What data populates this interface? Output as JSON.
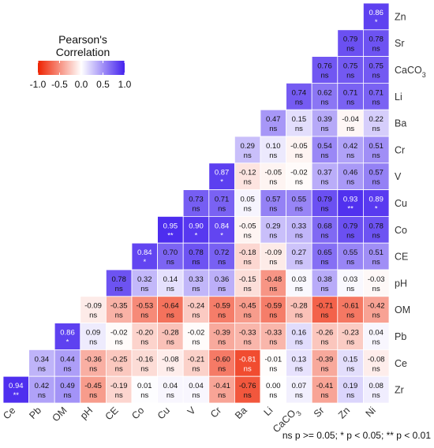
{
  "chart_data": {
    "type": "heatmap",
    "title": "",
    "xlabel": "",
    "ylabel": "",
    "x_labels": [
      "Ce",
      "Pb",
      "OM",
      "pH",
      "CE",
      "Co",
      "Cu",
      "V",
      "Cr",
      "Ba",
      "Li",
      "CaCO3",
      "Sr",
      "Zn",
      "Ni"
    ],
    "y_labels": [
      "Zn",
      "Sr",
      "CaCO3",
      "Li",
      "Ba",
      "Cr",
      "V",
      "Cu",
      "Co",
      "CE",
      "pH",
      "OM",
      "Pb",
      "Ce",
      "Zr"
    ],
    "values": [
      [
        null,
        null,
        null,
        null,
        null,
        null,
        null,
        null,
        null,
        null,
        null,
        null,
        null,
        null,
        0.86
      ],
      [
        null,
        null,
        null,
        null,
        null,
        null,
        null,
        null,
        null,
        null,
        null,
        null,
        null,
        0.79,
        0.78
      ],
      [
        null,
        null,
        null,
        null,
        null,
        null,
        null,
        null,
        null,
        null,
        null,
        null,
        0.76,
        0.75,
        0.75
      ],
      [
        null,
        null,
        null,
        null,
        null,
        null,
        null,
        null,
        null,
        null,
        null,
        0.74,
        0.62,
        0.71,
        0.71
      ],
      [
        null,
        null,
        null,
        null,
        null,
        null,
        null,
        null,
        null,
        null,
        0.47,
        0.15,
        0.39,
        -0.04,
        0.22
      ],
      [
        null,
        null,
        null,
        null,
        null,
        null,
        null,
        null,
        null,
        0.29,
        0.1,
        -0.05,
        0.54,
        0.42,
        0.51
      ],
      [
        null,
        null,
        null,
        null,
        null,
        null,
        null,
        null,
        0.87,
        -0.12,
        -0.05,
        -0.02,
        0.37,
        0.46,
        0.57
      ],
      [
        null,
        null,
        null,
        null,
        null,
        null,
        null,
        0.73,
        0.71,
        0.05,
        0.57,
        0.55,
        0.79,
        0.93,
        0.89
      ],
      [
        null,
        null,
        null,
        null,
        null,
        null,
        0.95,
        0.9,
        0.84,
        -0.05,
        0.29,
        0.33,
        0.68,
        0.79,
        0.78
      ],
      [
        null,
        null,
        null,
        null,
        null,
        0.84,
        0.7,
        0.78,
        0.72,
        -0.18,
        -0.09,
        0.27,
        0.65,
        0.55,
        0.51
      ],
      [
        null,
        null,
        null,
        null,
        0.78,
        0.32,
        0.14,
        0.33,
        0.36,
        -0.15,
        -0.48,
        0.03,
        0.38,
        0.03,
        -0.03
      ],
      [
        null,
        null,
        null,
        -0.09,
        -0.35,
        -0.53,
        -0.64,
        -0.24,
        -0.59,
        -0.45,
        -0.59,
        -0.28,
        -0.71,
        -0.61,
        -0.42
      ],
      [
        null,
        null,
        0.86,
        0.09,
        -0.02,
        -0.2,
        -0.28,
        -0.02,
        -0.39,
        -0.33,
        -0.33,
        0.16,
        -0.26,
        -0.23,
        0.04
      ],
      [
        null,
        0.34,
        0.44,
        -0.36,
        -0.25,
        -0.16,
        -0.08,
        -0.21,
        -0.6,
        -0.81,
        -0.01,
        0.13,
        -0.39,
        0.15,
        -0.08
      ],
      [
        0.94,
        0.42,
        0.49,
        -0.45,
        -0.19,
        0.01,
        0.04,
        0.04,
        -0.41,
        -0.76,
        0.0,
        0.07,
        -0.41,
        0.19,
        0.08
      ]
    ],
    "significance": [
      [
        null,
        null,
        null,
        null,
        null,
        null,
        null,
        null,
        null,
        null,
        null,
        null,
        null,
        null,
        "*"
      ],
      [
        null,
        null,
        null,
        null,
        null,
        null,
        null,
        null,
        null,
        null,
        null,
        null,
        null,
        "ns",
        "ns"
      ],
      [
        null,
        null,
        null,
        null,
        null,
        null,
        null,
        null,
        null,
        null,
        null,
        null,
        "ns",
        "ns",
        "ns"
      ],
      [
        null,
        null,
        null,
        null,
        null,
        null,
        null,
        null,
        null,
        null,
        null,
        "ns",
        "ns",
        "ns",
        "ns"
      ],
      [
        null,
        null,
        null,
        null,
        null,
        null,
        null,
        null,
        null,
        null,
        "ns",
        "ns",
        "ns",
        "ns",
        "ns"
      ],
      [
        null,
        null,
        null,
        null,
        null,
        null,
        null,
        null,
        null,
        "ns",
        "ns",
        "ns",
        "ns",
        "ns",
        "ns"
      ],
      [
        null,
        null,
        null,
        null,
        null,
        null,
        null,
        null,
        "*",
        "ns",
        "ns",
        "ns",
        "ns",
        "ns",
        "ns"
      ],
      [
        null,
        null,
        null,
        null,
        null,
        null,
        null,
        "ns",
        "ns",
        "ns",
        "ns",
        "ns",
        "ns",
        "**",
        "*"
      ],
      [
        null,
        null,
        null,
        null,
        null,
        null,
        "**",
        "*",
        "*",
        "ns",
        "ns",
        "ns",
        "ns",
        "ns",
        "ns"
      ],
      [
        null,
        null,
        null,
        null,
        null,
        "*",
        "ns",
        "ns",
        "ns",
        "ns",
        "ns",
        "ns",
        "ns",
        "ns",
        "ns"
      ],
      [
        null,
        null,
        null,
        null,
        "ns",
        "ns",
        "ns",
        "ns",
        "ns",
        "ns",
        "ns",
        "ns",
        "ns",
        "ns",
        "ns"
      ],
      [
        null,
        null,
        null,
        "ns",
        "ns",
        "ns",
        "ns",
        "ns",
        "ns",
        "ns",
        "ns",
        "ns",
        "ns",
        "ns",
        "ns"
      ],
      [
        null,
        null,
        "*",
        "ns",
        "ns",
        "ns",
        "ns",
        "ns",
        "ns",
        "ns",
        "ns",
        "ns",
        "ns",
        "ns",
        "ns"
      ],
      [
        null,
        "ns",
        "ns",
        "ns",
        "ns",
        "ns",
        "ns",
        "ns",
        "ns",
        "ns",
        "ns",
        "ns",
        "ns",
        "ns",
        "ns"
      ],
      [
        "**",
        "ns",
        "ns",
        "ns",
        "ns",
        "ns",
        "ns",
        "ns",
        "ns",
        "ns",
        "ns",
        "ns",
        "ns",
        "ns",
        "ns"
      ]
    ],
    "color_scale": {
      "low": "#ee2200",
      "mid": "#ffffff",
      "high": "#4422ee",
      "domain": [
        -1.0,
        0.0,
        1.0
      ]
    },
    "legend": {
      "title_line1": "Pearson's",
      "title_line2": "Correlation",
      "ticks": [
        "-1.0",
        "-0.5",
        "0.0",
        "0.5",
        "1.0"
      ],
      "tick_values": [
        -1.0,
        -0.5,
        0.0,
        0.5,
        1.0
      ],
      "placement": "top-left"
    },
    "footnote": "ns p >= 0.05; * p < 0.05; ** p < 0.01"
  }
}
